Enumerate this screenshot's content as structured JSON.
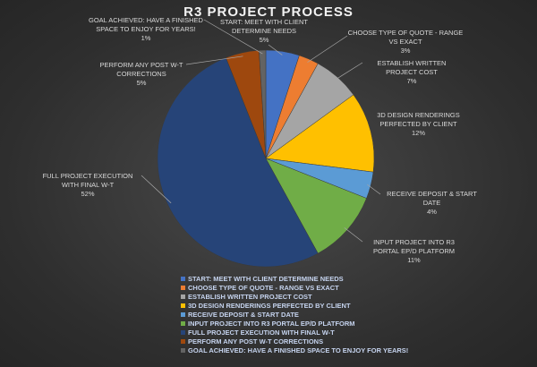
{
  "chart_data": {
    "type": "pie",
    "title": "R3 PROJECT PROCESS",
    "legend_position": "bottom",
    "slices": [
      {
        "label": "START: MEET WITH CLIENT DETERMINE NEEDS",
        "value": 5,
        "pct_label": "5%",
        "color": "#4472C4"
      },
      {
        "label": "CHOOSE TYPE OF QUOTE - RANGE VS EXACT",
        "value": 3,
        "pct_label": "3%",
        "color": "#ED7D31"
      },
      {
        "label": "ESTABLISH WRITTEN PROJECT COST",
        "value": 7,
        "pct_label": "7%",
        "color": "#A5A5A5"
      },
      {
        "label": "3D DESIGN RENDERINGS PERFECTED BY CLIENT",
        "value": 12,
        "pct_label": "12%",
        "color": "#FFC000"
      },
      {
        "label": "RECEIVE DEPOSIT & START DATE",
        "value": 4,
        "pct_label": "4%",
        "color": "#5B9BD5"
      },
      {
        "label": "INPUT PROJECT INTO R3 PORTAL EP/D PLATFORM",
        "value": 11,
        "pct_label": "11%",
        "color": "#70AD47"
      },
      {
        "label": "FULL PROJECT EXECUTION WITH FINAL W-T",
        "value": 52,
        "pct_label": "52%",
        "color": "#264478"
      },
      {
        "label": "PERFORM ANY POST W-T CORRECTIONS",
        "value": 5,
        "pct_label": "5%",
        "color": "#9E480E"
      },
      {
        "label": "GOAL ACHIEVED: HAVE A FINISHED SPACE TO ENJOY FOR YEARS!",
        "value": 1,
        "pct_label": "1%",
        "color": "#636363"
      }
    ]
  }
}
